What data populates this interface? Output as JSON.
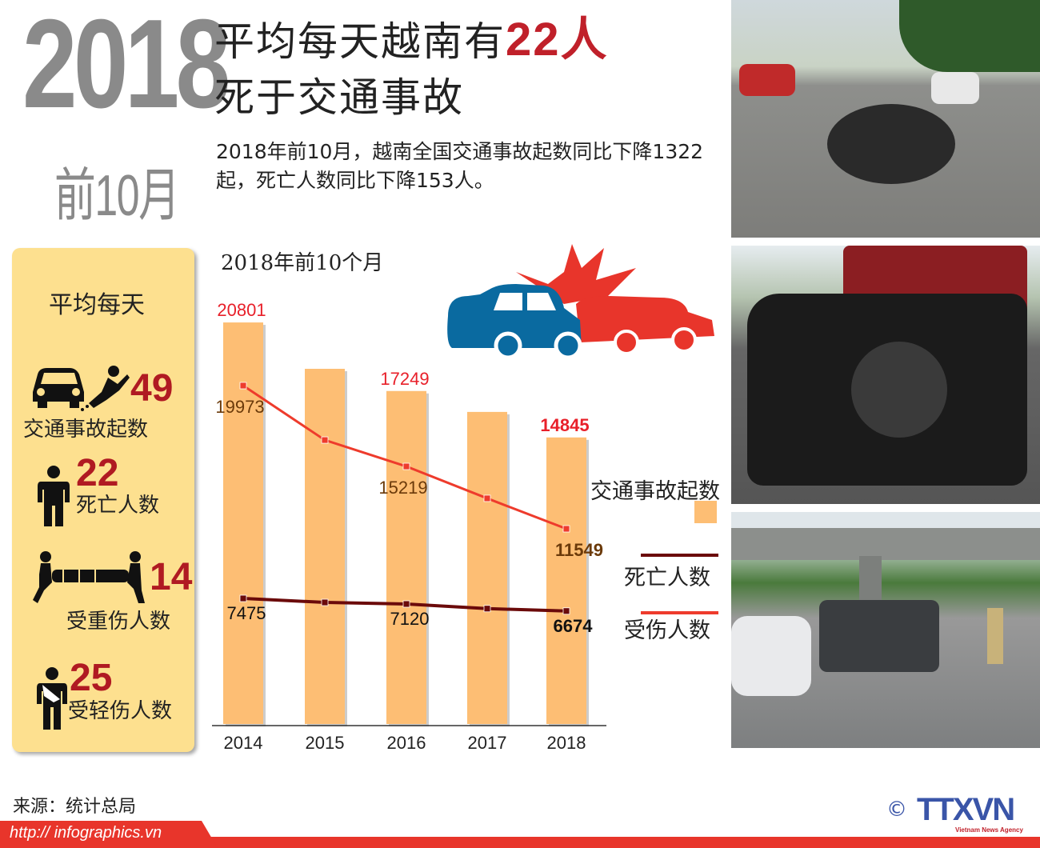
{
  "header": {
    "year": "2018",
    "period": "前10月",
    "title_line1_prefix": "平均每天越南有",
    "title_highlight": "22人",
    "title_line2": "死于交通事故",
    "subtitle": "2018年前10月，越南全国交通事故起数同比下降1322起，死亡人数同比下降153人。"
  },
  "daily_panel": {
    "heading": "平均每天",
    "items": [
      {
        "icon": "car-hits-motorbike-icon",
        "value": "49",
        "label": "交通事故起数"
      },
      {
        "icon": "person-icon",
        "value": "22",
        "label": "死亡人数"
      },
      {
        "icon": "stretcher-bearers-icon",
        "value": "14",
        "label": "受重伤人数"
      },
      {
        "icon": "injured-arm-sling-icon",
        "value": "25",
        "label": "受轻伤人数"
      }
    ]
  },
  "chart_data": {
    "type": "bar",
    "title": "2018年前10个月",
    "categories": [
      "2014",
      "2015",
      "2016",
      "2017",
      "2018"
    ],
    "series": [
      {
        "name": "交通事故起数",
        "kind": "bar",
        "color": "#fdbe74",
        "values": [
          20801,
          18400,
          17249,
          16167,
          14845
        ],
        "printed_labels": [
          "20801",
          "",
          "17249",
          "",
          "14845"
        ]
      },
      {
        "name": "受伤人数",
        "kind": "line",
        "color": "#ee3b2c",
        "values": [
          19973,
          16770,
          15219,
          13340,
          11549
        ],
        "printed_labels": [
          "19973",
          "",
          "15219",
          "",
          "11549"
        ]
      },
      {
        "name": "死亡人数",
        "kind": "line",
        "color": "#6b0a0a",
        "values": [
          7475,
          7220,
          7120,
          6827,
          6674
        ],
        "printed_labels": [
          "7475",
          "",
          "7120",
          "",
          "6674"
        ]
      }
    ],
    "legend": [
      "交通事故起数",
      "死亡人数",
      "受伤人数"
    ],
    "legend_position": "right",
    "grid": false
  },
  "footer": {
    "source": "来源：统计总局",
    "url": "http:// infographics.vn",
    "logo": "TTXVN",
    "logo_sub": "Vietnam News Agency",
    "copyright": "©"
  },
  "colors": {
    "accent_red": "#c0202a",
    "panel": "#fde08f",
    "bar": "#fdbe74",
    "footer_red": "#e8352b",
    "gray_title": "#8a8a8a"
  }
}
